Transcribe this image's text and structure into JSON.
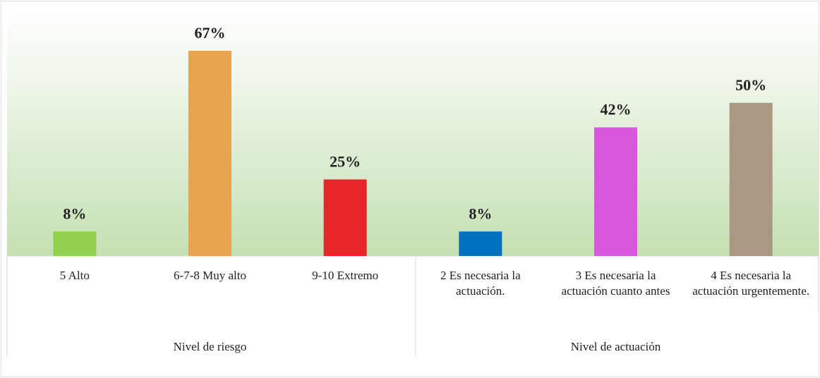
{
  "chart_data": {
    "type": "bar",
    "groups": [
      {
        "name": "Nivel de riesgo",
        "categories": [
          "5 Alto",
          "6-7-8 Muy alto",
          "9-10 Extremo"
        ],
        "values": [
          8,
          67,
          25
        ],
        "value_labels": [
          "8%",
          "67%",
          "25%"
        ],
        "colors": [
          "#92d050",
          "#e6a44e",
          "#e8262a"
        ]
      },
      {
        "name": "Nivel de actuación",
        "categories": [
          "2 Es necesaria la actuación.",
          "3 Es necesaria la actuación cuanto antes",
          "4 Es necesaria la actuación urgentemente."
        ],
        "values": [
          8,
          42,
          50
        ],
        "value_labels": [
          "8%",
          "42%",
          "50%"
        ],
        "colors": [
          "#0070c0",
          "#d957de",
          "#ab9882"
        ]
      }
    ]
  }
}
